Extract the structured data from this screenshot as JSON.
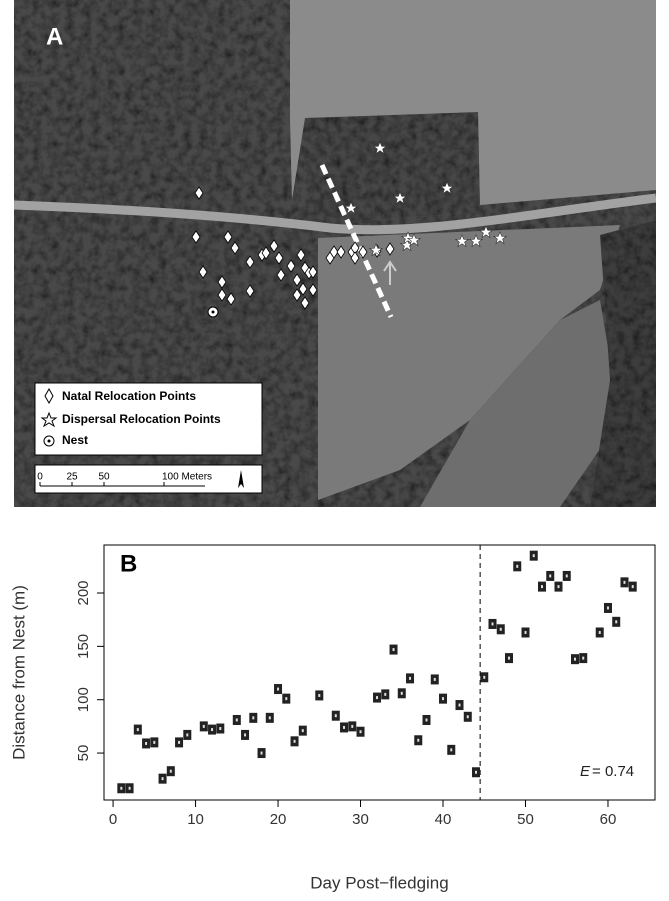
{
  "map": {
    "label": "A",
    "legend": [
      "Natal Relocation Points",
      "Dispersal Relocation Points",
      "Nest"
    ],
    "scale_labels": [
      "0",
      "25",
      "50",
      "100 Meters"
    ]
  },
  "chart_data": {
    "type": "scatter",
    "label": "B",
    "x_label": "Day Post−fledging",
    "y_label": "Distance from Nest (m)",
    "annotation_var": "E",
    "annotation_text": "= 0.74",
    "threshold_x": 44.5,
    "xlim": [
      -1.1,
      65.7
    ],
    "ylim": [
      6,
      245
    ],
    "xticks": [
      0,
      10,
      20,
      30,
      40,
      50,
      60
    ],
    "yticks": [
      50,
      100,
      150,
      200
    ],
    "x": [
      1,
      2,
      3,
      4,
      5,
      6,
      7,
      8,
      9,
      11,
      12,
      13,
      15,
      16,
      17,
      18,
      19,
      20,
      21,
      22,
      23,
      25,
      27,
      28,
      29,
      30,
      32,
      33,
      34,
      35,
      36,
      37,
      38,
      39,
      40,
      41,
      42,
      43,
      44,
      45,
      46,
      47,
      48,
      49,
      50,
      51,
      52,
      53,
      54,
      55,
      56,
      57,
      59,
      60,
      61,
      62,
      63
    ],
    "values": [
      17,
      17,
      72,
      59,
      60,
      26,
      33,
      60,
      67,
      75,
      72,
      73,
      81,
      67,
      83,
      50,
      83,
      110,
      101,
      61,
      71,
      104,
      85,
      74,
      75,
      70,
      102,
      105,
      147,
      106,
      120,
      62,
      81,
      119,
      101,
      53,
      95,
      84,
      32,
      121,
      171,
      166,
      139,
      225,
      163,
      235,
      206,
      216,
      206,
      216,
      138,
      139,
      163,
      186,
      173,
      210,
      206
    ]
  }
}
